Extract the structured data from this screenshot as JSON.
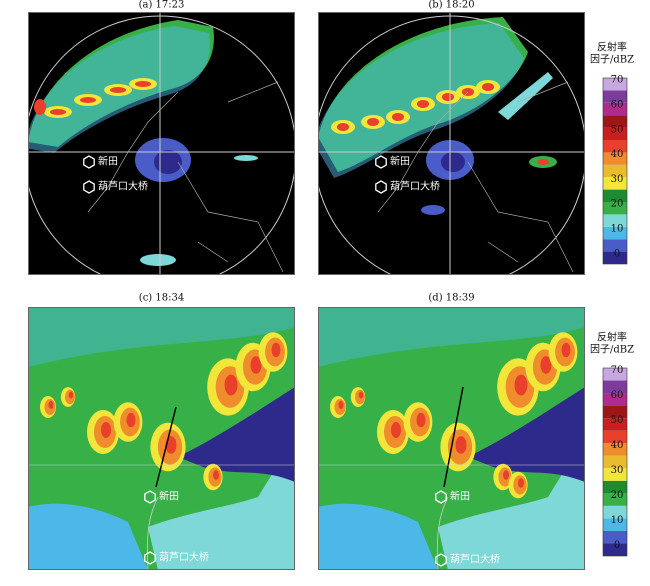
{
  "panels": [
    {
      "title": "(a) 17:23",
      "markers": [
        {
          "label": "新田"
        },
        {
          "label": "葫芦口大桥"
        }
      ]
    },
    {
      "title": "(b) 18:20",
      "markers": [
        {
          "label": "新田"
        },
        {
          "label": "葫芦口大桥"
        }
      ]
    },
    {
      "title": "(c) 18:34",
      "markers": [
        {
          "label": "新田"
        },
        {
          "label": "葫芦口大桥"
        }
      ]
    },
    {
      "title": "(d) 18:39",
      "markers": [
        {
          "label": "新田"
        },
        {
          "label": "葫芦口大桥"
        }
      ]
    }
  ],
  "colorbars": [
    {
      "title": [
        "反射率",
        "因子/dBZ"
      ],
      "range": [
        0,
        75
      ],
      "ticks": [
        0,
        10,
        20,
        30,
        40,
        50,
        60,
        70
      ],
      "colors": [
        "#2e2a8c",
        "#4a5cc8",
        "#4cb8e8",
        "#7fd8d8",
        "#38b048",
        "#1e8a32",
        "#f2e63a",
        "#e9bb2e",
        "#ef8c2c",
        "#e8402a",
        "#c82020",
        "#9c1818",
        "#b02c8c",
        "#7c3c9c",
        "#c8a8e0"
      ]
    },
    {
      "title": [
        "反射率",
        "因子/dBZ"
      ],
      "range": [
        0,
        75
      ],
      "ticks": [
        0,
        10,
        20,
        30,
        40,
        50,
        60,
        70
      ],
      "colors": [
        "#2e2a8c",
        "#4a5cc8",
        "#4cb8e8",
        "#7fd8d8",
        "#38b048",
        "#1e8a32",
        "#f2e63a",
        "#e9bb2e",
        "#ef8c2c",
        "#e8402a",
        "#c82020",
        "#9c1818",
        "#b02c8c",
        "#7c3c9c",
        "#c8a8e0"
      ]
    }
  ]
}
